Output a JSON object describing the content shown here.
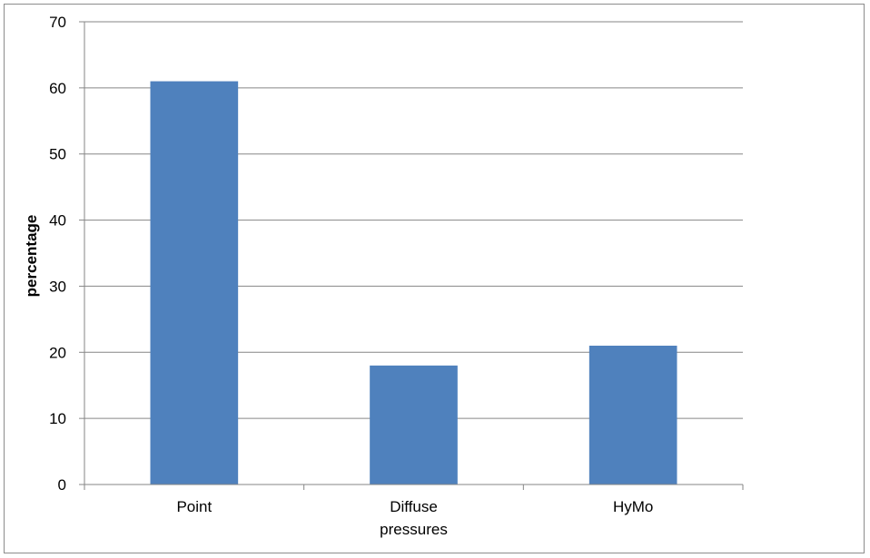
{
  "chart_data": {
    "type": "bar",
    "categories": [
      "Point",
      "Diffuse pressures",
      "HyMo"
    ],
    "category_lines": [
      [
        "Point"
      ],
      [
        "Diffuse",
        "pressures"
      ],
      [
        "HyMo"
      ]
    ],
    "values": [
      61,
      18,
      21
    ],
    "title": "",
    "xlabel": "",
    "ylabel": "percentage",
    "ylim": [
      0,
      70
    ],
    "yticks": [
      0,
      10,
      20,
      30,
      40,
      50,
      60,
      70
    ],
    "grid": true,
    "legend": "none",
    "bar_color": "#4F81BD"
  }
}
